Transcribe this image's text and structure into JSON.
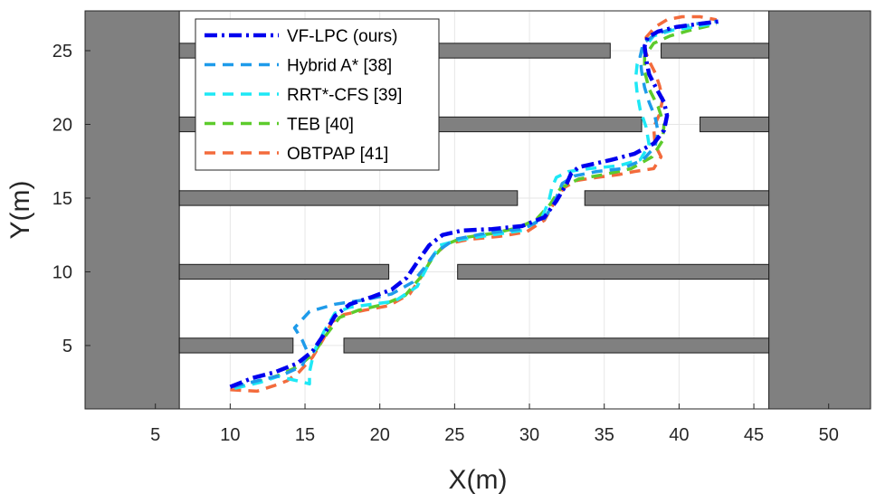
{
  "chart_data": {
    "type": "line",
    "title": "",
    "xlabel": "X(m)",
    "ylabel": "Y(m)",
    "xlim": [
      0.3,
      52.8
    ],
    "ylim": [
      0.7,
      27.7
    ],
    "xticks": [
      "5",
      "10",
      "15",
      "20",
      "25",
      "30",
      "35",
      "40",
      "45",
      "50"
    ],
    "xtick_values": [
      5,
      10,
      15,
      20,
      25,
      30,
      35,
      40,
      45,
      50
    ],
    "yticks": [
      "5",
      "10",
      "15",
      "20",
      "25"
    ],
    "ytick_values": [
      5,
      10,
      15,
      20,
      25
    ],
    "grid": true,
    "legend_position": "top-left",
    "obstacle_color": "#808080",
    "obstacles": [
      {
        "x": [
          0.3,
          6.6
        ],
        "y": [
          0.7,
          27.7
        ]
      },
      {
        "x": [
          46.0,
          52.8
        ],
        "y": [
          0.7,
          27.7
        ]
      },
      {
        "x": [
          6.6,
          14.2
        ],
        "y": [
          4.5,
          5.5
        ]
      },
      {
        "x": [
          17.6,
          46.0
        ],
        "y": [
          4.5,
          5.5
        ]
      },
      {
        "x": [
          6.6,
          20.6
        ],
        "y": [
          9.5,
          10.5
        ]
      },
      {
        "x": [
          25.2,
          46.0
        ],
        "y": [
          9.5,
          10.5
        ]
      },
      {
        "x": [
          6.6,
          29.2
        ],
        "y": [
          14.5,
          15.5
        ]
      },
      {
        "x": [
          33.7,
          46.0
        ],
        "y": [
          14.5,
          15.5
        ]
      },
      {
        "x": [
          6.6,
          37.5
        ],
        "y": [
          19.5,
          20.5
        ]
      },
      {
        "x": [
          41.4,
          46.0
        ],
        "y": [
          19.5,
          20.5
        ]
      },
      {
        "x": [
          6.6,
          35.4
        ],
        "y": [
          24.5,
          25.5
        ]
      },
      {
        "x": [
          38.8,
          46.0
        ],
        "y": [
          24.5,
          25.5
        ]
      }
    ],
    "series": [
      {
        "name": "VF-LPC (ours)",
        "color": "#0000ee",
        "dash": "dashdot",
        "x": [
          10.0,
          11.5,
          13.0,
          14.5,
          15.5,
          16.3,
          17.0,
          18.0,
          19.5,
          20.8,
          21.8,
          22.6,
          23.3,
          24.2,
          25.5,
          27.5,
          29.5,
          31.0,
          31.8,
          32.5,
          32.8,
          33.3,
          34.2,
          35.5,
          37.0,
          38.3,
          39.0,
          39.2,
          39.0,
          38.5,
          38.0,
          37.8,
          37.7,
          37.9,
          38.6,
          39.8,
          41.2,
          42.8
        ],
        "y": [
          2.2,
          2.8,
          3.2,
          3.8,
          4.6,
          5.8,
          7.0,
          7.8,
          8.3,
          8.8,
          9.6,
          10.8,
          11.8,
          12.5,
          12.8,
          12.9,
          13.1,
          13.7,
          14.8,
          16.0,
          16.7,
          17.1,
          17.3,
          17.6,
          18.0,
          18.7,
          19.6,
          20.6,
          21.5,
          22.4,
          23.4,
          24.4,
          25.3,
          25.9,
          26.3,
          26.6,
          26.8,
          27.0
        ]
      },
      {
        "name": "Hybrid A* [38]",
        "color": "#1e9bea",
        "dash": "dashed",
        "x": [
          10.2,
          11.8,
          13.5,
          14.8,
          15.2,
          14.8,
          14.3,
          15.3,
          17.0,
          19.0,
          20.8,
          22.2,
          23.0,
          23.7,
          25.0,
          27.0,
          29.5,
          31.0,
          31.7,
          32.2,
          33.0,
          34.5,
          36.2,
          37.6,
          38.4,
          38.6,
          38.4,
          38.0,
          37.7,
          37.5,
          37.4,
          37.6,
          38.4,
          39.6,
          41.0,
          42.6
        ],
        "y": [
          2.2,
          2.6,
          3.0,
          3.6,
          4.5,
          5.4,
          6.2,
          7.3,
          7.8,
          8.1,
          8.5,
          9.3,
          10.3,
          11.3,
          12.2,
          12.6,
          12.9,
          13.6,
          14.8,
          16.0,
          16.5,
          16.8,
          17.0,
          17.6,
          18.5,
          19.5,
          20.5,
          21.5,
          22.5,
          23.6,
          24.6,
          25.5,
          26.1,
          26.5,
          26.8,
          27.0
        ]
      },
      {
        "name": "RRT*-CFS [39]",
        "color": "#1ee8f5",
        "dash": "dashed",
        "x": [
          10.3,
          12.0,
          13.2,
          14.5,
          15.3,
          15.3,
          15.6,
          16.3,
          17.0,
          18.0,
          19.5,
          21.0,
          22.5,
          23.2,
          24.0,
          25.5,
          27.5,
          29.5,
          30.8,
          31.3,
          31.5,
          31.8,
          32.6,
          34.0,
          36.0,
          37.4,
          38.0,
          37.8,
          37.4,
          37.2,
          37.1,
          37.2,
          37.6,
          38.3,
          39.6,
          41.0,
          42.6
        ],
        "y": [
          2.1,
          2.5,
          2.9,
          2.6,
          2.4,
          3.2,
          4.6,
          6.0,
          7.2,
          7.6,
          7.8,
          8.0,
          9.0,
          10.4,
          11.8,
          12.2,
          12.5,
          12.8,
          13.6,
          14.8,
          15.7,
          16.4,
          16.8,
          17.0,
          17.2,
          17.6,
          18.6,
          19.8,
          21.0,
          22.1,
          23.1,
          24.1,
          25.1,
          26.0,
          26.4,
          26.6,
          26.9
        ]
      },
      {
        "name": "TEB [40]",
        "color": "#5dcb2c",
        "dash": "dashed",
        "x": [
          10.3,
          11.8,
          13.3,
          14.6,
          15.6,
          16.4,
          17.3,
          18.6,
          20.3,
          21.7,
          22.7,
          23.5,
          24.3,
          25.5,
          27.5,
          29.3,
          30.5,
          31.4,
          32.1,
          33.3,
          35.0,
          36.8,
          38.2,
          38.9,
          39.0,
          38.6,
          38.0,
          37.7,
          37.7,
          38.3,
          39.4,
          40.8,
          42.5
        ],
        "y": [
          2.1,
          2.5,
          3.0,
          3.6,
          4.5,
          5.7,
          6.9,
          7.4,
          7.8,
          8.4,
          9.6,
          10.9,
          11.8,
          12.3,
          12.6,
          13.0,
          13.6,
          14.6,
          15.7,
          16.3,
          16.6,
          17.0,
          17.8,
          18.9,
          20.0,
          21.2,
          22.4,
          23.6,
          24.6,
          25.5,
          26.0,
          26.4,
          26.8
        ]
      },
      {
        "name": "OBTPAP [41]",
        "color": "#f36b3c",
        "dash": "dashed",
        "x": [
          10.0,
          11.8,
          13.0,
          13.8,
          14.6,
          15.5,
          16.2,
          16.8,
          17.6,
          19.0,
          20.6,
          22.0,
          22.8,
          23.5,
          24.5,
          26.0,
          28.0,
          29.8,
          31.0,
          31.6,
          32.3,
          33.2,
          34.5,
          36.0,
          37.0,
          38.3,
          38.8,
          38.4,
          38.3,
          38.7,
          38.9,
          38.7,
          38.4,
          38.0,
          37.7,
          37.8,
          38.4,
          39.2,
          40.2,
          41.4,
          42.5
        ],
        "y": [
          2.0,
          1.9,
          2.3,
          2.6,
          3.2,
          4.2,
          5.4,
          6.6,
          7.1,
          7.4,
          7.7,
          8.5,
          9.7,
          11.0,
          11.9,
          12.2,
          12.4,
          12.7,
          13.5,
          14.6,
          15.7,
          16.2,
          16.4,
          16.6,
          16.8,
          17.0,
          17.8,
          18.6,
          19.8,
          20.7,
          21.7,
          22.6,
          23.5,
          24.3,
          25.1,
          25.9,
          26.6,
          27.1,
          27.3,
          27.3,
          27.1
        ]
      }
    ]
  }
}
